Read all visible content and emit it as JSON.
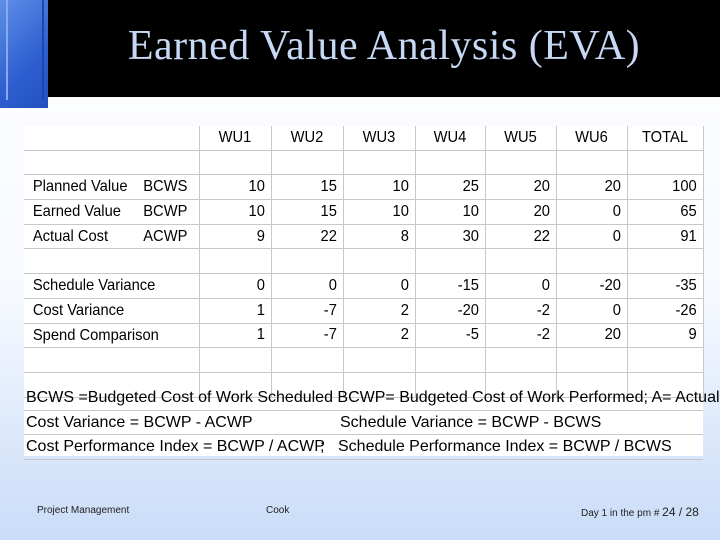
{
  "slide": {
    "title": "Earned Value Analysis (EVA)"
  },
  "table": {
    "headers": [
      "WU1",
      "WU2",
      "WU3",
      "WU4",
      "WU5",
      "WU6",
      "TOTAL"
    ],
    "rows": [
      {
        "name": "Planned Value",
        "abbr": "BCWS",
        "values": [
          "10",
          "15",
          "10",
          "25",
          "20",
          "20",
          "100"
        ]
      },
      {
        "name": "Earned Value",
        "abbr": "BCWP",
        "values": [
          "10",
          "15",
          "10",
          "10",
          "20",
          "0",
          "65"
        ]
      },
      {
        "name": "Actual Cost",
        "abbr": "ACWP",
        "values": [
          "9",
          "22",
          "8",
          "30",
          "22",
          "0",
          "91"
        ]
      },
      {
        "name": "Schedule Variance",
        "abbr": "",
        "values": [
          "0",
          "0",
          "0",
          "-15",
          "0",
          "-20",
          "-35"
        ]
      },
      {
        "name": "Cost Variance",
        "abbr": "",
        "values": [
          "1",
          "-7",
          "2",
          "-20",
          "-2",
          "0",
          "-26"
        ]
      },
      {
        "name": "Spend Comparison",
        "abbr": "",
        "values": [
          "1",
          "-7",
          "2",
          "-5",
          "-2",
          "20",
          "9"
        ]
      }
    ]
  },
  "notes": {
    "line1": "BCWS =Budgeted Cost of Work Scheduled BCWP= Budgeted Cost of Work Performed; A= Actual",
    "line2_left": "Cost Variance = BCWP - ACWP",
    "line2_right": "Schedule Variance = BCWP - BCWS",
    "line3_left": "Cost Performance Index = BCWP / ACWP",
    "line3_sep": ";",
    "line3_right": "Schedule Performance Index =  BCWP / BCWS"
  },
  "footer": {
    "left": "Project Management",
    "center": "Cook",
    "right_prefix": "Day 1 in the pm #",
    "page": "24 / 28"
  }
}
